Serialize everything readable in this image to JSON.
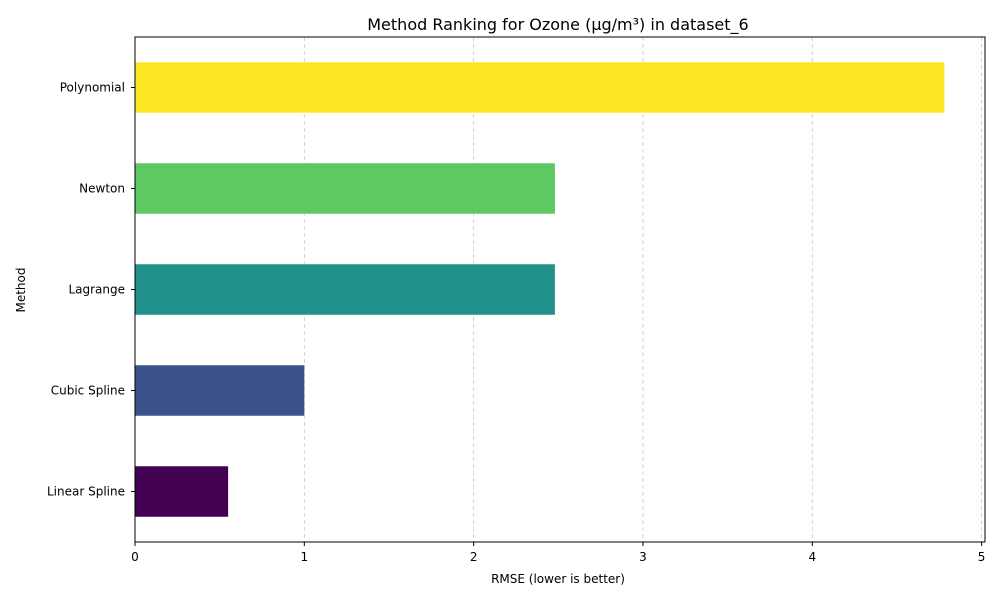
{
  "chart_data": {
    "type": "bar",
    "orientation": "horizontal",
    "title": "Method Ranking for Ozone (µg/m³) in dataset_6",
    "xlabel": "RMSE (lower is better)",
    "ylabel": "Method",
    "categories": [
      "Linear Spline",
      "Cubic Spline",
      "Lagrange",
      "Newton",
      "Polynomial"
    ],
    "values": [
      0.55,
      1.0,
      2.48,
      2.48,
      4.78
    ],
    "colors": [
      "#440154",
      "#3b528b",
      "#21918c",
      "#5ec962",
      "#fde725"
    ],
    "xlim": [
      0,
      5.02
    ],
    "xticks": [
      0,
      1,
      2,
      3,
      4,
      5
    ],
    "grid": "x, dashed"
  }
}
